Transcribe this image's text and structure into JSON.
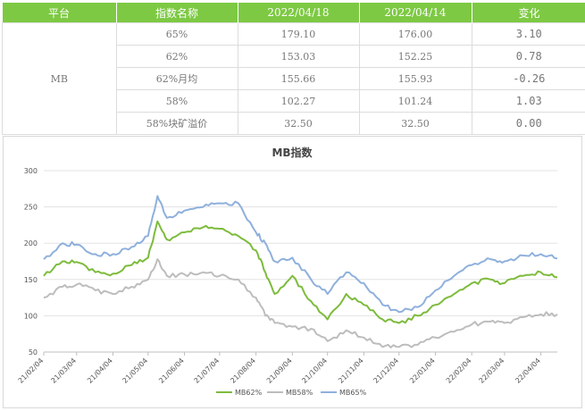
{
  "table": {
    "headers": [
      "平台",
      "指数名称",
      "2022/04/18",
      "2022/04/14",
      "变化"
    ],
    "platform": "MB",
    "rows": [
      {
        "name": "65%",
        "v1": "179.10",
        "v2": "176.00",
        "change": "3.10",
        "trend": "up"
      },
      {
        "name": "62%",
        "v1": "153.03",
        "v2": "152.25",
        "change": "0.78",
        "trend": "up"
      },
      {
        "name": "62%月均",
        "v1": "155.66",
        "v2": "155.93",
        "change": "-0.26",
        "trend": "down"
      },
      {
        "name": "58%",
        "v1": "102.27",
        "v2": "101.24",
        "change": "1.03",
        "trend": "up"
      },
      {
        "name": "58%块矿溢价",
        "v1": "32.50",
        "v2": "32.50",
        "change": "0.00",
        "trend": "flat"
      }
    ]
  },
  "colors": {
    "header_bg": "#7dc943",
    "up": "#e00000",
    "down": "#00a050",
    "mb62": "#7dbb3c",
    "mb58": "#bdbdbd",
    "mb65": "#8fb0dc"
  },
  "chart_data": {
    "type": "line",
    "title": "MB指数",
    "xlabel": "",
    "ylabel": "",
    "ylim": [
      50,
      300
    ],
    "yticks": [
      50,
      100,
      150,
      200,
      250,
      300
    ],
    "grid": true,
    "legend": "bottom",
    "xticks": [
      "21/02/04",
      "21/03/04",
      "21/04/04",
      "21/05/04",
      "21/06/04",
      "21/07/04",
      "21/08/04",
      "21/09/04",
      "21/10/04",
      "21/11/04",
      "21/12/04",
      "22/01/04",
      "22/02/04",
      "22/03/04",
      "22/04/04"
    ],
    "x": [
      "21/02/04",
      "21/02/20",
      "21/03/04",
      "21/03/20",
      "21/04/04",
      "21/04/20",
      "21/05/04",
      "21/05/12",
      "21/05/20",
      "21/06/04",
      "21/06/20",
      "21/07/04",
      "21/07/20",
      "21/08/04",
      "21/08/12",
      "21/08/20",
      "21/09/04",
      "21/09/20",
      "21/10/04",
      "21/10/20",
      "21/11/04",
      "21/11/20",
      "21/12/04",
      "21/12/20",
      "22/01/04",
      "22/01/20",
      "22/02/04",
      "22/02/20",
      "22/03/04",
      "22/03/20",
      "22/04/04",
      "22/04/18"
    ],
    "series": [
      {
        "name": "MB62%",
        "values": [
          155,
          175,
          174,
          160,
          158,
          170,
          180,
          230,
          205,
          215,
          222,
          220,
          210,
          190,
          160,
          130,
          155,
          120,
          95,
          130,
          115,
          95,
          90,
          100,
          115,
          130,
          145,
          150,
          145,
          155,
          160,
          153
        ]
      },
      {
        "name": "MB58%",
        "values": [
          125,
          140,
          143,
          135,
          130,
          140,
          150,
          178,
          155,
          157,
          160,
          155,
          150,
          125,
          100,
          90,
          85,
          82,
          65,
          80,
          70,
          57,
          57,
          60,
          70,
          78,
          88,
          92,
          90,
          98,
          102,
          102
        ]
      },
      {
        "name": "MB65%",
        "values": [
          178,
          200,
          198,
          185,
          185,
          195,
          210,
          265,
          235,
          245,
          250,
          255,
          255,
          215,
          200,
          175,
          180,
          150,
          130,
          160,
          145,
          115,
          105,
          112,
          135,
          155,
          170,
          178,
          175,
          183,
          185,
          179
        ]
      }
    ]
  }
}
